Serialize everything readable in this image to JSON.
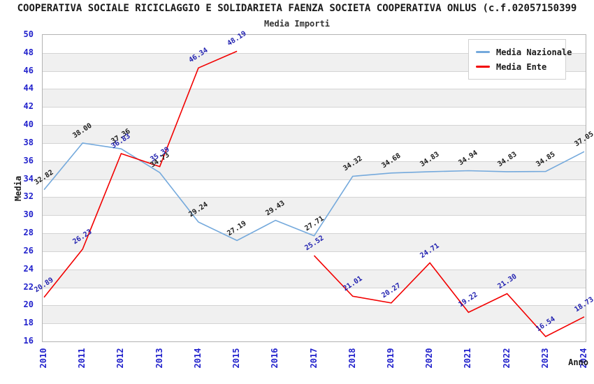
{
  "title": "COOPERATIVA SOCIALE RICICLAGGIO E SOLIDARIETA FAENZA SOCIETA COOPERATIVA ONLUS (c.f.02057150399",
  "subtitle": "Media Importi",
  "axes": {
    "y_label": "Media",
    "x_label": "Anno"
  },
  "legend": {
    "items": [
      {
        "label": "Media Nazionale",
        "color": "#74a9dc"
      },
      {
        "label": "Media Ente",
        "color": "#f20000"
      }
    ]
  },
  "colors": {
    "tick_text": "#2222cc",
    "band_gray": "#f0f0f0",
    "gridline": "#d4d4d4",
    "plot_border": "#b3b3b3",
    "nazionale_line": "#74a9dc",
    "ente_line": "#f20000",
    "nazionale_label_text": "#1a1a1a",
    "ente_label_text": "#1f1faf"
  },
  "chart_data": {
    "type": "line",
    "title": "Media Importi",
    "xlabel": "Anno",
    "ylabel": "Media",
    "ylim": [
      16,
      50
    ],
    "y_tick_step": 2,
    "grid": true,
    "banded_background": true,
    "legend_position": "top-right",
    "categories": [
      "2010",
      "2011",
      "2012",
      "2013",
      "2014",
      "2015",
      "2016",
      "2017",
      "2018",
      "2019",
      "2020",
      "2021",
      "2022",
      "2023",
      "2024"
    ],
    "series": [
      {
        "name": "Media Nazionale",
        "color": "#74a9dc",
        "label_color": "#1a1a1a",
        "values": [
          32.82,
          38.0,
          37.36,
          34.73,
          29.24,
          27.19,
          29.43,
          27.71,
          34.32,
          34.68,
          34.83,
          34.94,
          34.83,
          34.85,
          37.05
        ]
      },
      {
        "name": "Media Ente",
        "color": "#f20000",
        "label_color": "#1f1faf",
        "values": [
          20.89,
          26.23,
          36.83,
          35.39,
          46.34,
          48.19,
          null,
          25.52,
          21.01,
          20.27,
          24.71,
          19.22,
          21.3,
          16.54,
          18.73
        ]
      }
    ]
  }
}
